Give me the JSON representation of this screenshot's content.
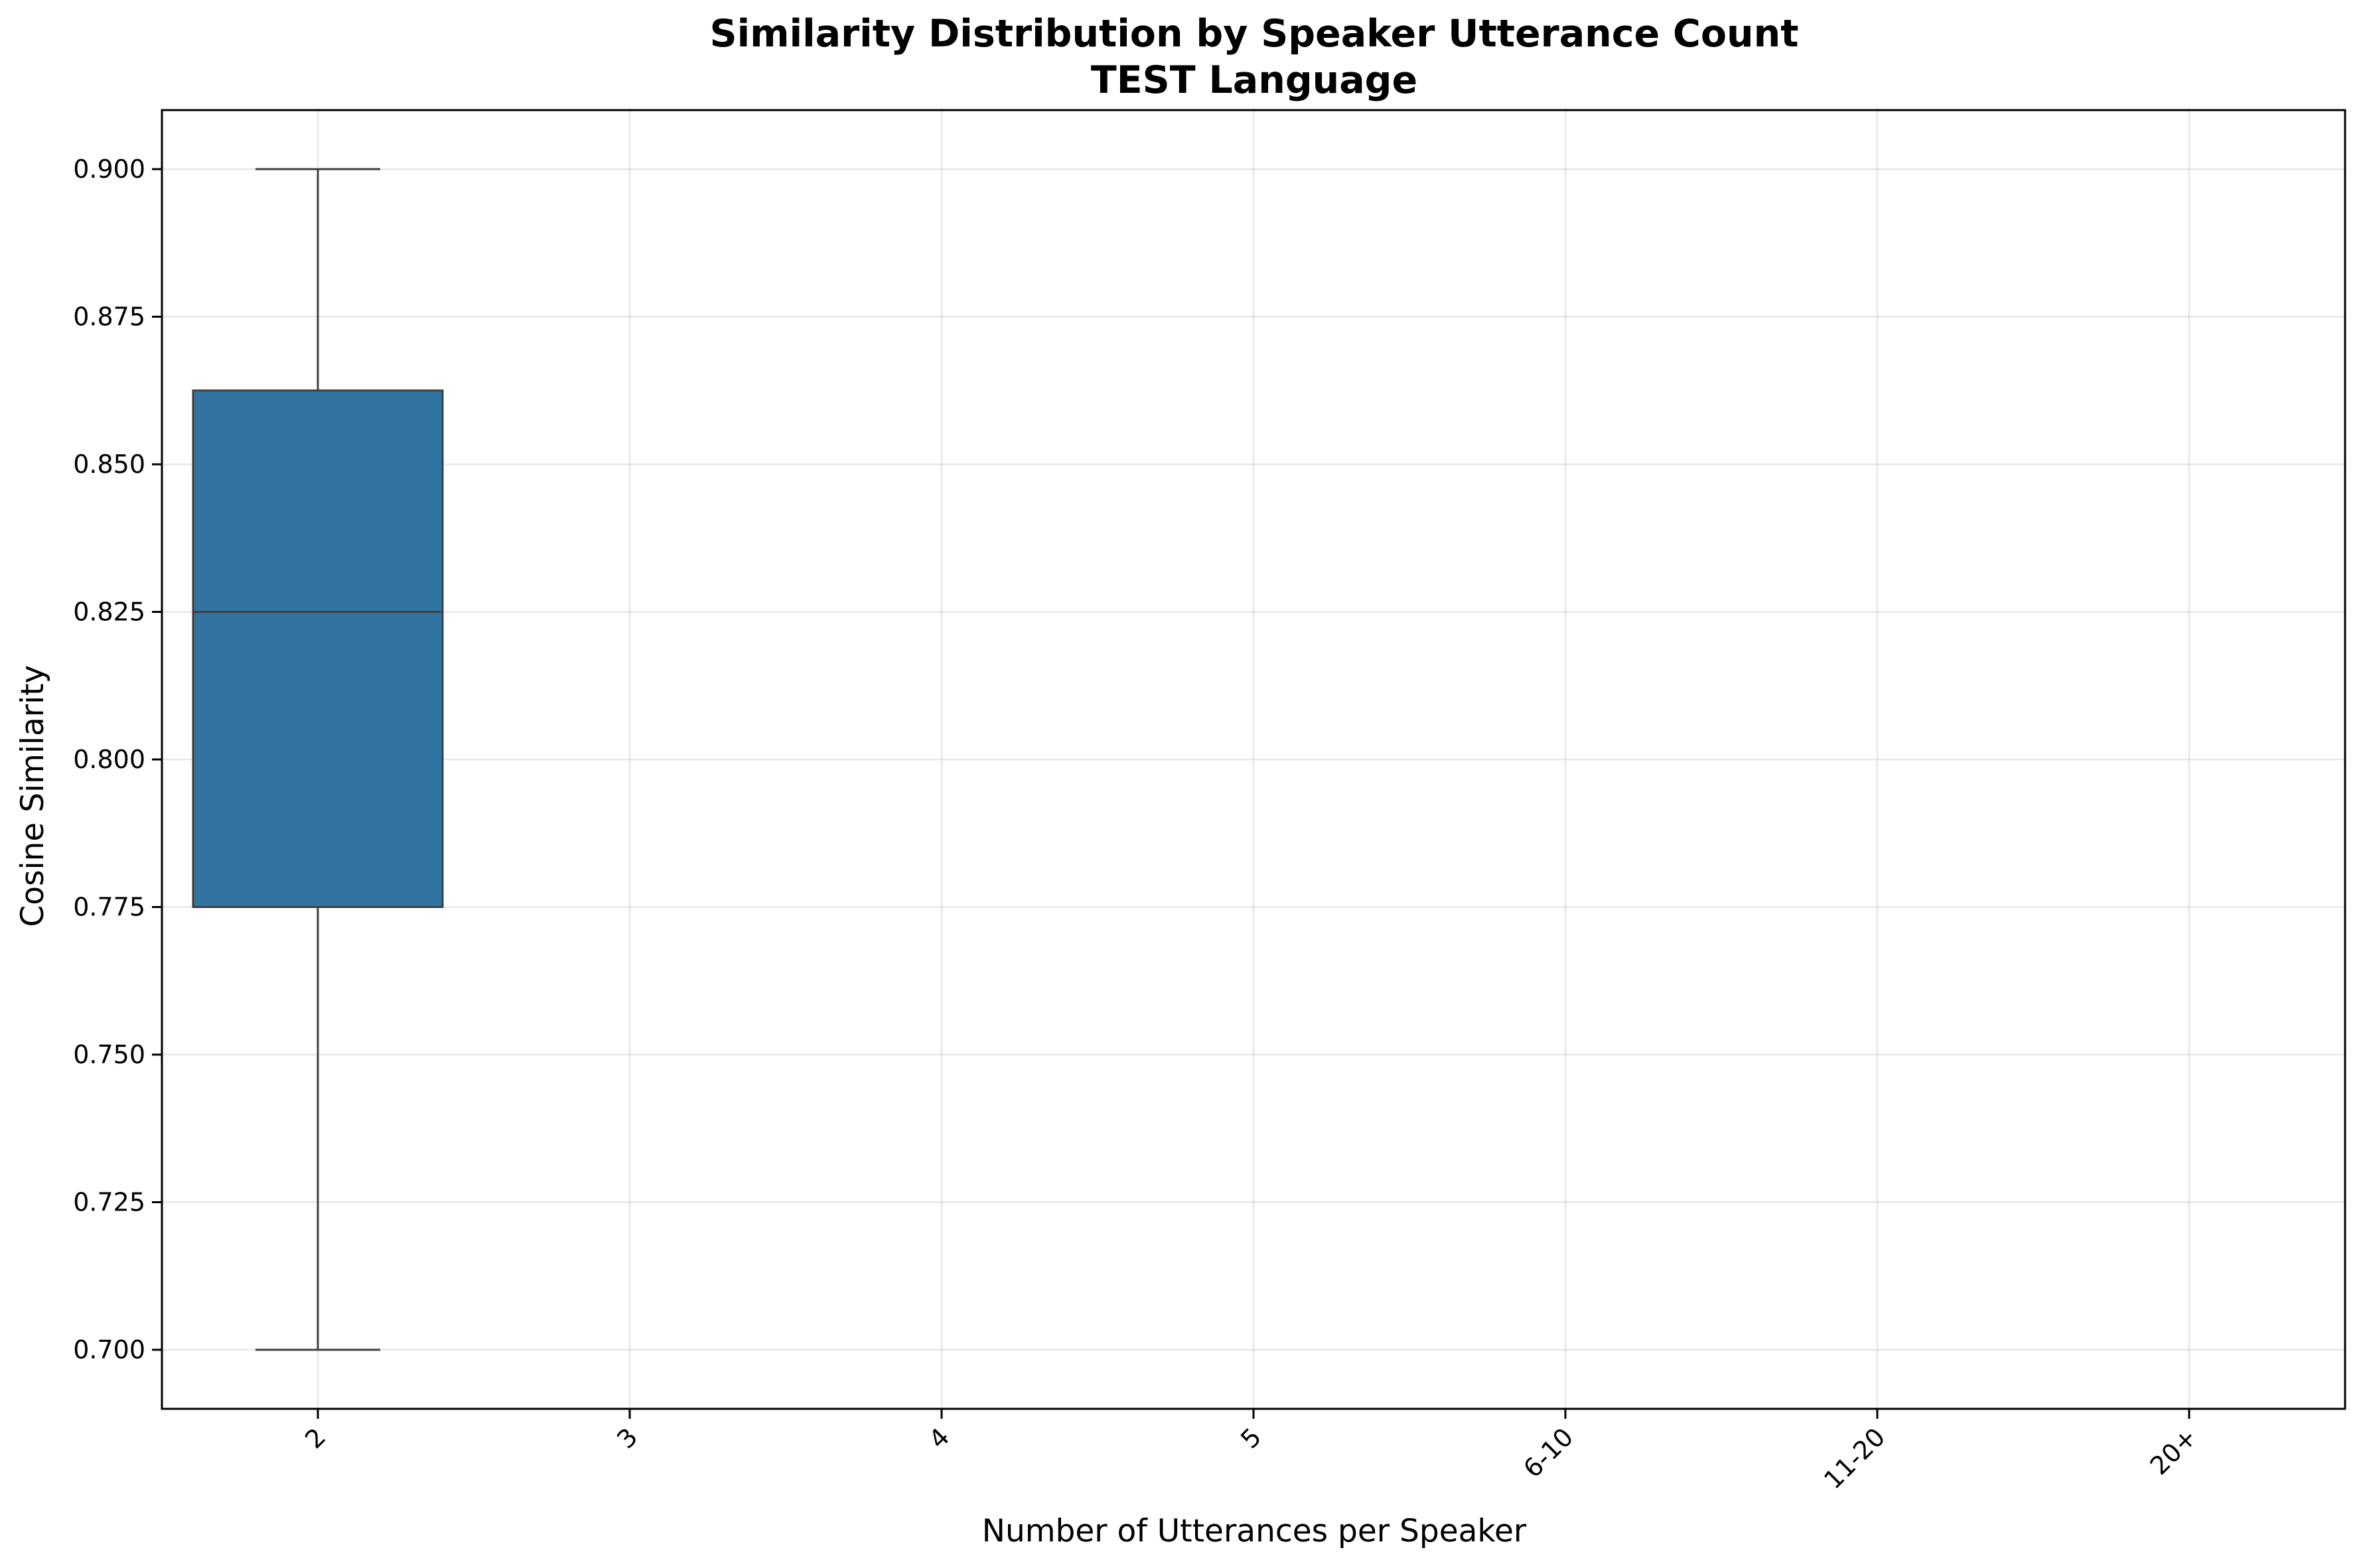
{
  "chart_data": {
    "type": "box",
    "title": "Similarity Distribution by Speaker Utterance Count",
    "subtitle": "TEST Language",
    "xlabel": "Number of Utterances per Speaker",
    "ylabel": "Cosine Similarity",
    "categories": [
      "2",
      "3",
      "4",
      "5",
      "6-10",
      "11-20",
      "20+"
    ],
    "ylim": [
      0.69,
      0.91
    ],
    "yticks": [
      0.7,
      0.725,
      0.75,
      0.775,
      0.8,
      0.825,
      0.85,
      0.875,
      0.9
    ],
    "grid": true,
    "box_color": "#3274a1",
    "boxes": [
      {
        "category": "2",
        "whisker_low": 0.7,
        "q1": 0.775,
        "median": 0.825,
        "q3": 0.8625,
        "whisker_high": 0.9
      }
    ]
  }
}
